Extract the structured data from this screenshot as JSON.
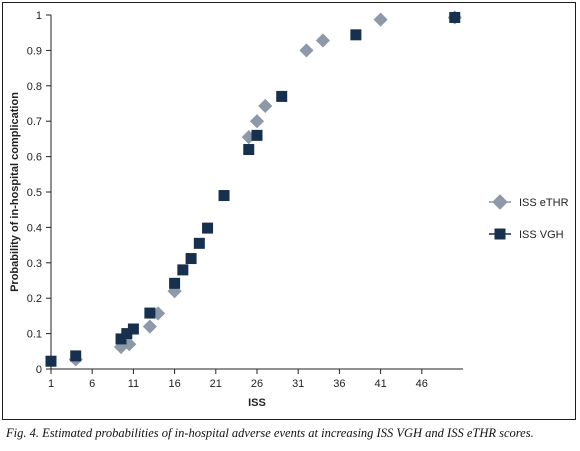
{
  "caption": "Fig. 4. Estimated probabilities of in-hospital adverse events at increasing ISS VGH and ISS eTHR scores.",
  "chart_data": {
    "type": "scatter",
    "title": "",
    "xlabel": "ISS",
    "ylabel": "Probability of in-hospital complication",
    "xlim": [
      1,
      51
    ],
    "ylim": [
      0,
      1
    ],
    "x_ticks": [
      "1",
      "6",
      "11",
      "16",
      "21",
      "26",
      "31",
      "36",
      "41",
      "46"
    ],
    "y_ticks": [
      "0",
      "0.1",
      "0.2",
      "0.3",
      "0.4",
      "0.5",
      "0.6",
      "0.7",
      "0.8",
      "0.9",
      "1"
    ],
    "grid": false,
    "legend_position": "right",
    "series": [
      {
        "name": "ISS eTHR",
        "marker": "diamond",
        "color": "#8d99a8",
        "points": [
          [
            4,
            0.027
          ],
          [
            9.5,
            0.062
          ],
          [
            10.5,
            0.07
          ],
          [
            13,
            0.12
          ],
          [
            14,
            0.157
          ],
          [
            16,
            0.22
          ],
          [
            25,
            0.655
          ],
          [
            26,
            0.7
          ],
          [
            27,
            0.743
          ],
          [
            32,
            0.9
          ],
          [
            34,
            0.928
          ],
          [
            41,
            0.987
          ],
          [
            50,
            0.993
          ]
        ]
      },
      {
        "name": "ISS VGH",
        "marker": "square",
        "color": "#17304e",
        "points": [
          [
            1,
            0.022
          ],
          [
            4,
            0.037
          ],
          [
            9.5,
            0.085
          ],
          [
            10.2,
            0.1
          ],
          [
            11,
            0.113
          ],
          [
            13,
            0.158
          ],
          [
            16,
            0.242
          ],
          [
            17,
            0.28
          ],
          [
            18,
            0.312
          ],
          [
            19,
            0.355
          ],
          [
            20,
            0.398
          ],
          [
            22,
            0.49
          ],
          [
            25,
            0.62
          ],
          [
            26,
            0.66
          ],
          [
            29,
            0.77
          ],
          [
            38,
            0.944
          ],
          [
            50,
            0.993
          ]
        ]
      }
    ]
  }
}
